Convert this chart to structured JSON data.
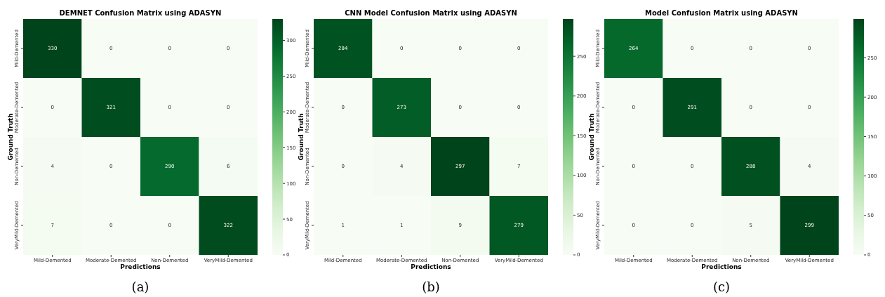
{
  "chart_data": [
    {
      "type": "heatmap",
      "title": "DEMNET Confusion Matrix using ADASYN",
      "xlabel": "Predictions",
      "ylabel": "Ground Truth",
      "categories": [
        "Mild-Demented",
        "Moderate-Demented",
        "Non-Demented",
        "VeryMild-Demented"
      ],
      "y_categories": [
        "Mild-Demented",
        "Moderate-Demented",
        "Non-Demented",
        "VeryMild-Demented"
      ],
      "cells": [
        [
          330,
          0,
          0,
          0
        ],
        [
          0,
          321,
          0,
          0
        ],
        [
          4,
          0,
          290,
          6
        ],
        [
          7,
          0,
          0,
          322
        ]
      ],
      "clim": [
        0,
        330
      ],
      "cticks": [
        0,
        50,
        100,
        150,
        200,
        250,
        300
      ],
      "data_labels": true,
      "annotations": [
        "(a)"
      ]
    },
    {
      "type": "heatmap",
      "title": "CNN Model Confusion Matrix using ADASYN",
      "xlabel": "Predictions",
      "ylabel": "Ground Truth",
      "categories": [
        "Mild-Demented",
        "Moderate-Demented",
        "Non-Demented",
        "VeryMild-Demented"
      ],
      "y_categories": [
        "Mild-Demented",
        "Moderate-Demented",
        "Non-Demented",
        "VeryMild-Demented"
      ],
      "cells": [
        [
          284,
          0,
          0,
          0
        ],
        [
          0,
          273,
          0,
          0
        ],
        [
          0,
          4,
          297,
          7
        ],
        [
          1,
          1,
          9,
          279
        ]
      ],
      "clim": [
        0,
        297
      ],
      "cticks": [
        0,
        50,
        100,
        150,
        200,
        250
      ],
      "data_labels": true,
      "annotations": [
        "(b)"
      ]
    },
    {
      "type": "heatmap",
      "title": "Model Confusion Matrix using ADASYN",
      "xlabel": "Predictions",
      "ylabel": "Ground Truth",
      "categories": [
        "Mild-Demented",
        "Moderate-Demented",
        "Non-Demented",
        "VeryMild-Demented"
      ],
      "y_categories": [
        "Mild-Demented",
        "Moderate-Demented",
        "Non-Demented",
        "VeryMild-Demented"
      ],
      "cells": [
        [
          264,
          0,
          0,
          0
        ],
        [
          0,
          291,
          0,
          0
        ],
        [
          0,
          0,
          288,
          4
        ],
        [
          0,
          0,
          5,
          299
        ]
      ],
      "clim": [
        0,
        299
      ],
      "cticks": [
        0,
        50,
        100,
        150,
        200,
        250
      ],
      "data_labels": true,
      "annotations": [
        "(c)"
      ]
    }
  ]
}
